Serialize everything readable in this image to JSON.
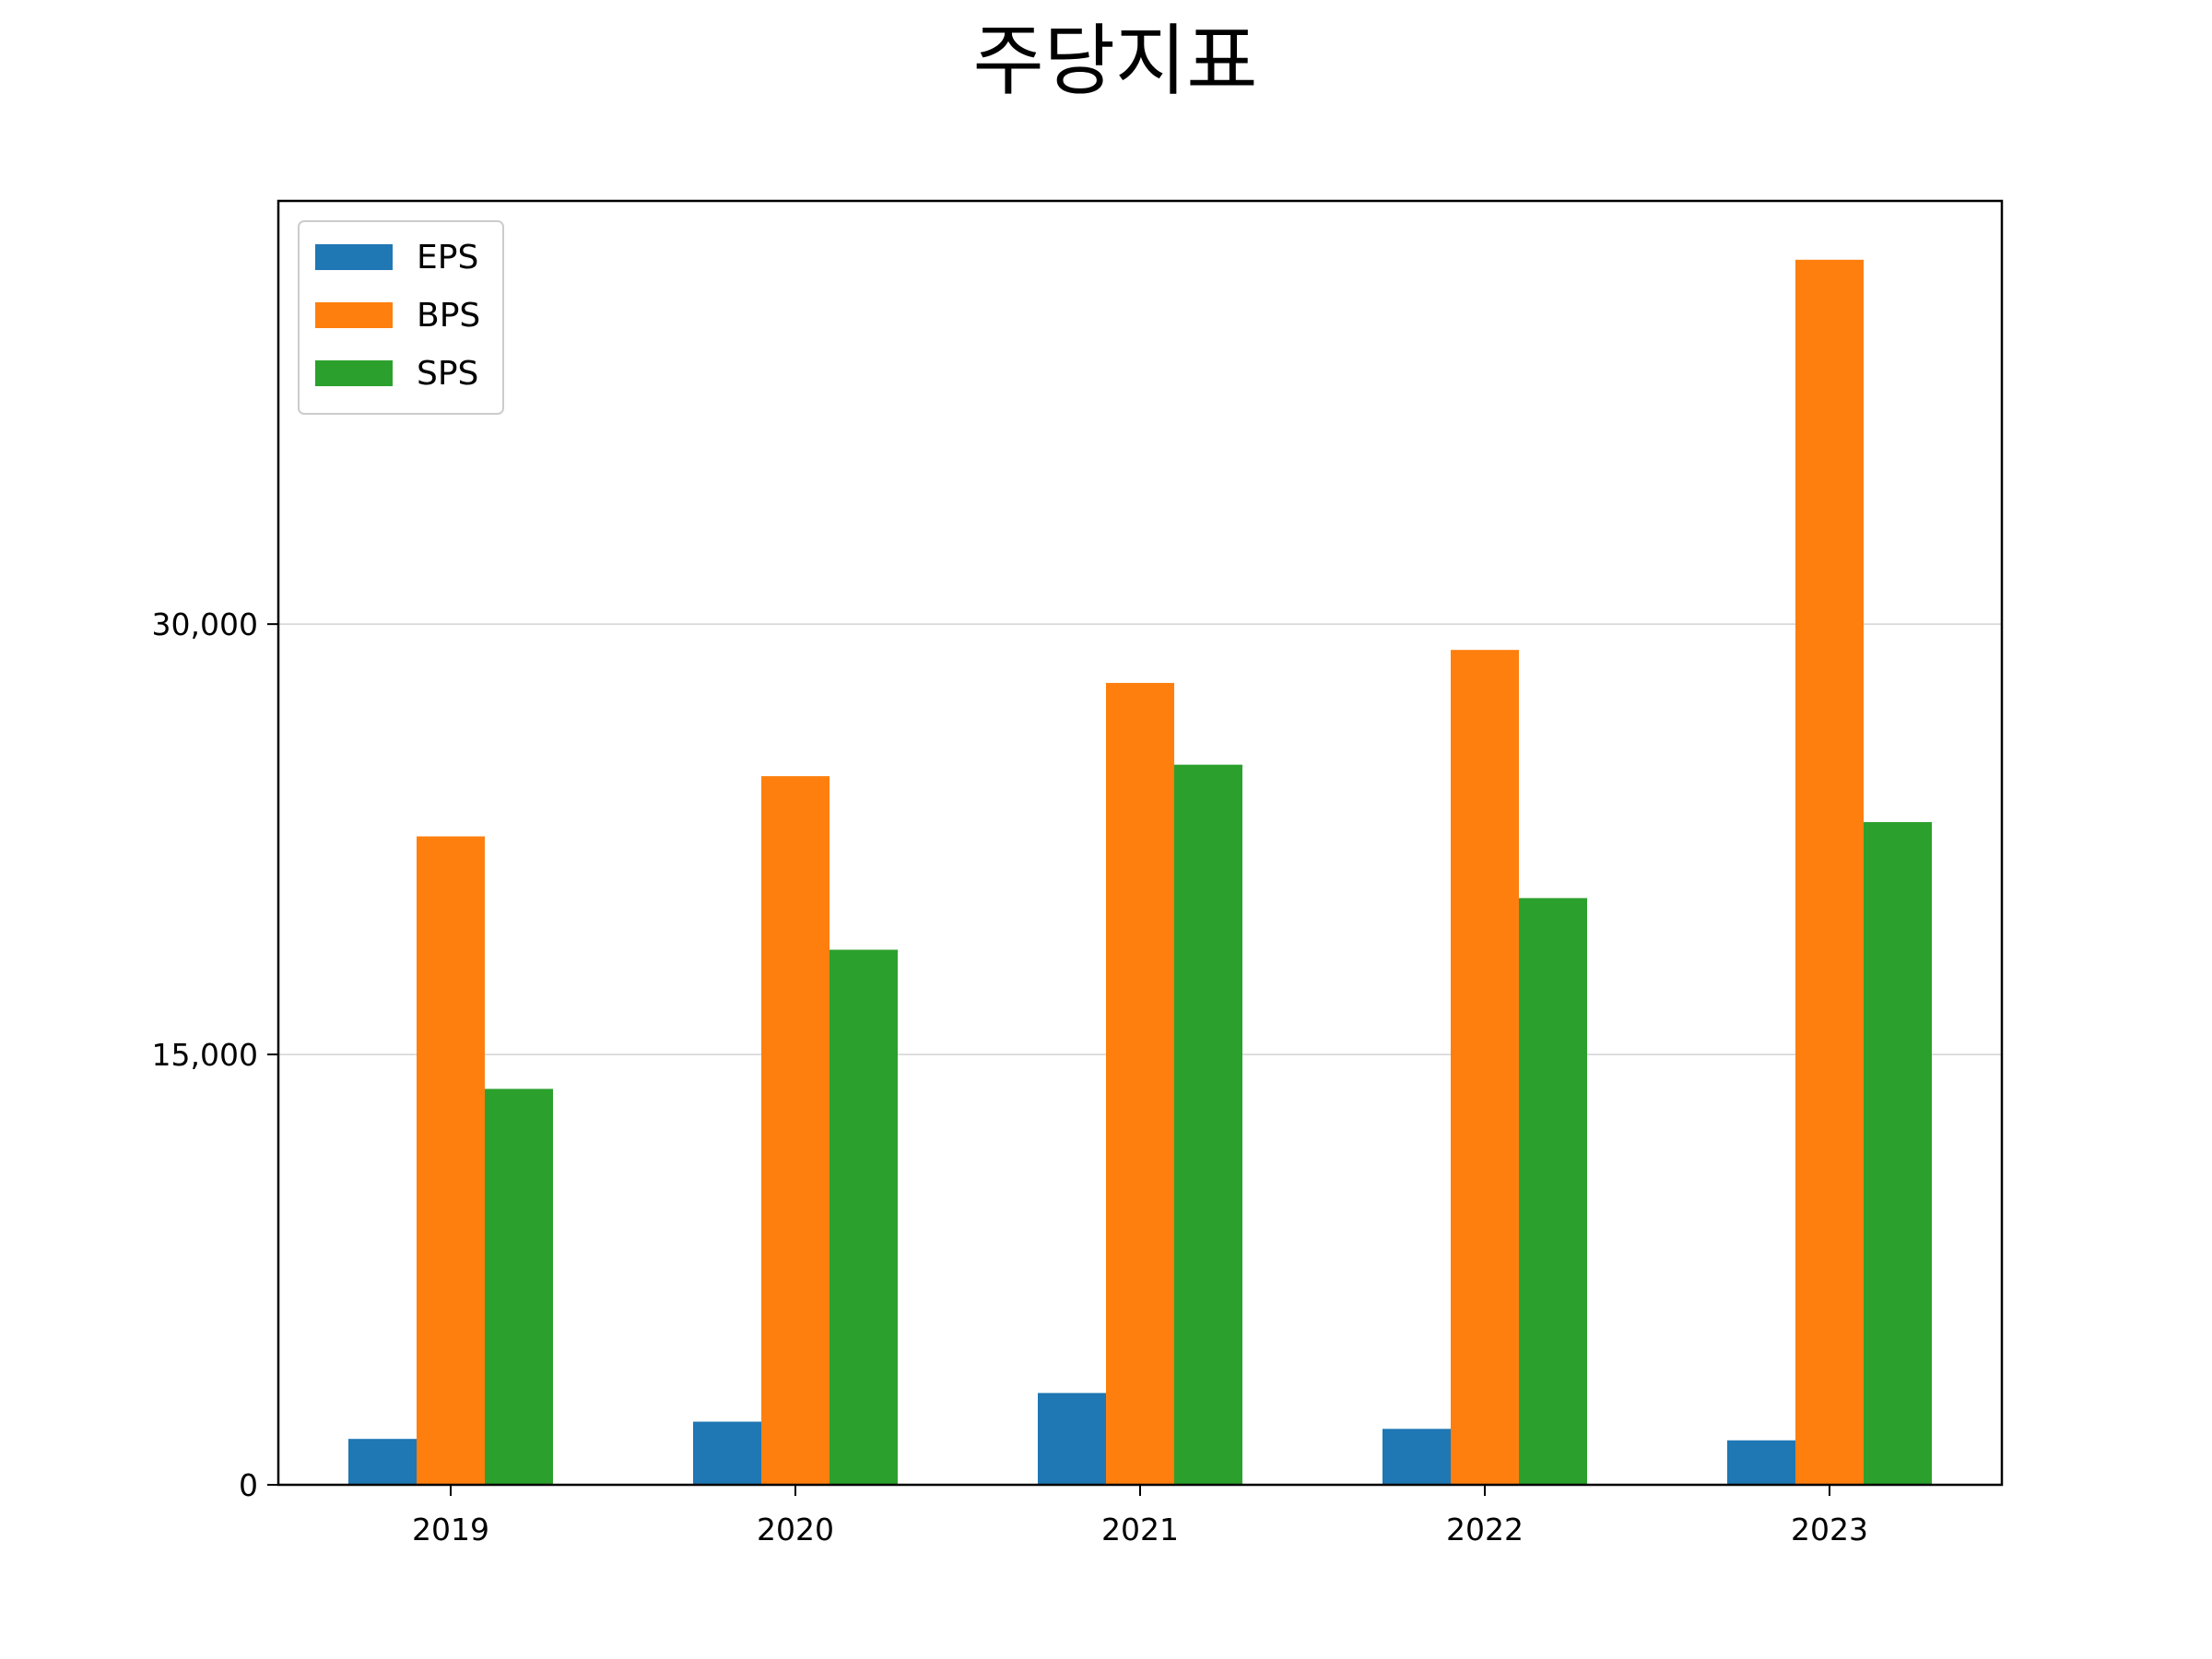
{
  "chart_data": {
    "type": "bar",
    "title": "주당지표",
    "xlabel": "",
    "ylabel": "",
    "categories": [
      "2019",
      "2020",
      "2021",
      "2022",
      "2023"
    ],
    "series": [
      {
        "name": "EPS",
        "color": "#1f77b4",
        "values": [
          1600,
          2200,
          3200,
          1950,
          1550
        ]
      },
      {
        "name": "BPS",
        "color": "#ff7f0e",
        "values": [
          22600,
          24700,
          27950,
          29100,
          42700
        ]
      },
      {
        "name": "SPS",
        "color": "#2ca02c",
        "values": [
          13800,
          18650,
          25100,
          20450,
          23100
        ]
      }
    ],
    "ylim": [
      0,
      44750
    ],
    "yticks": [
      0,
      15000,
      30000
    ],
    "ytick_labels": [
      "0",
      "15,000",
      "30,000"
    ],
    "grid": "horizontal",
    "legend_position": "upper-left"
  }
}
